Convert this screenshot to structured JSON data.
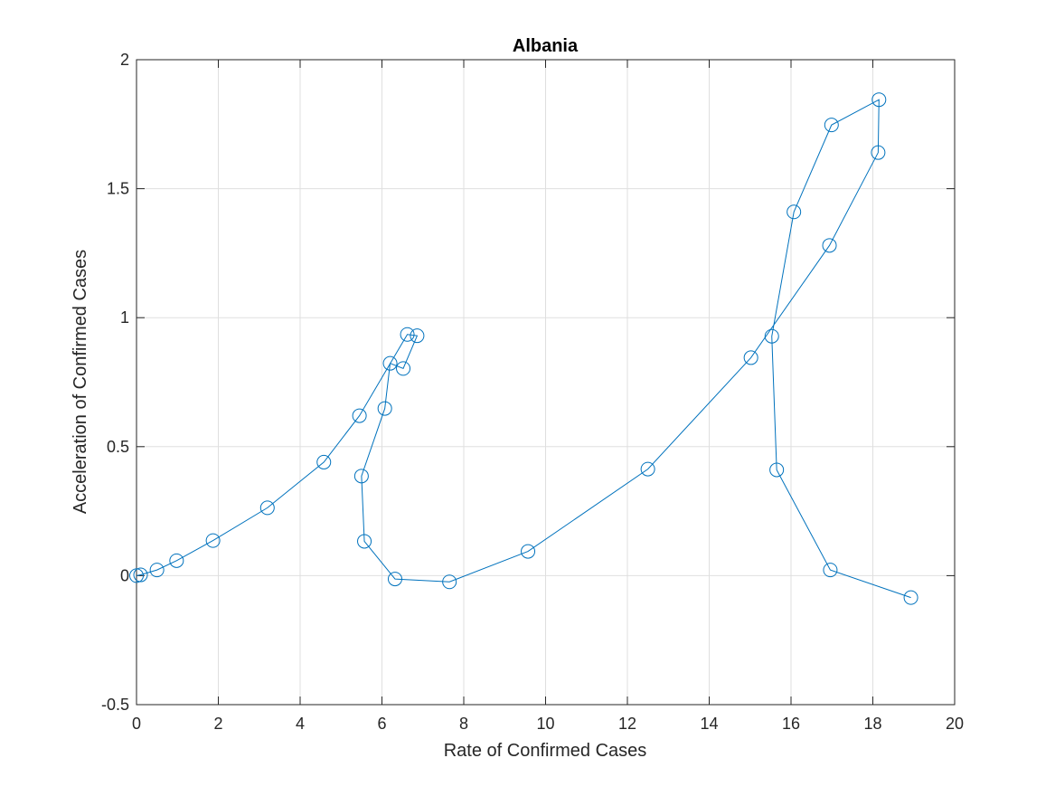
{
  "chart_data": {
    "type": "line",
    "title": "Albania",
    "xlabel": "Rate of Confirmed Cases",
    "ylabel": "Acceleration of Confirmed Cases",
    "xlim": [
      0,
      20
    ],
    "ylim": [
      -0.5,
      2
    ],
    "xticks": [
      0,
      2,
      4,
      6,
      8,
      10,
      12,
      14,
      16,
      18,
      20
    ],
    "yticks": [
      -0.5,
      0,
      0.5,
      1,
      1.5,
      2
    ],
    "xtick_labels": [
      "0",
      "2",
      "4",
      "6",
      "8",
      "10",
      "12",
      "14",
      "16",
      "18",
      "20"
    ],
    "ytick_labels": [
      "-0.5",
      "0",
      "0.5",
      "1",
      "1.5",
      "2"
    ],
    "grid": true,
    "marker": "circle",
    "color": "#0072BD",
    "series": [
      {
        "x": [
          0.0,
          0.1,
          0.5,
          0.98,
          1.87,
          3.2,
          4.58,
          5.45,
          6.62,
          6.86,
          6.52,
          6.2,
          6.07,
          5.5,
          5.57,
          6.32,
          7.65,
          9.57,
          12.5,
          15.02,
          16.94,
          18.13,
          18.15,
          16.99,
          16.07,
          15.53,
          15.65,
          16.96,
          18.93
        ],
        "y": [
          0.0,
          0.003,
          0.022,
          0.058,
          0.136,
          0.263,
          0.44,
          0.62,
          0.935,
          0.93,
          0.803,
          0.823,
          0.648,
          0.386,
          0.133,
          -0.013,
          -0.024,
          0.094,
          0.413,
          0.845,
          1.28,
          1.64,
          1.845,
          1.747,
          1.41,
          0.928,
          0.41,
          0.022,
          -0.085
        ]
      }
    ]
  }
}
